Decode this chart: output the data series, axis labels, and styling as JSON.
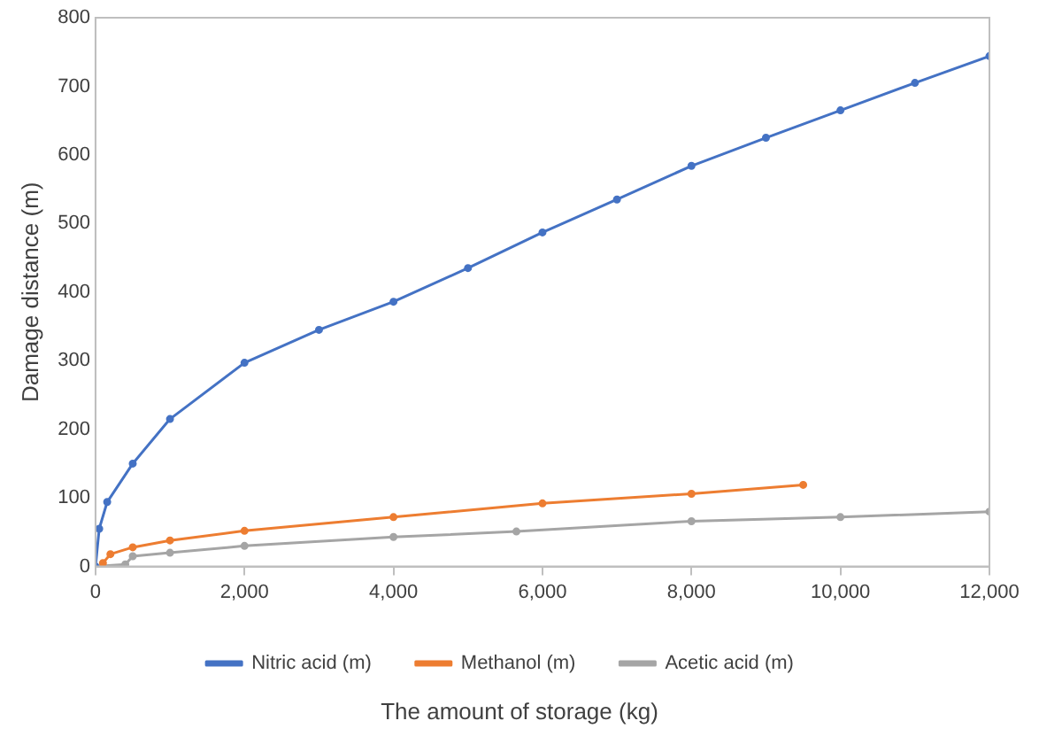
{
  "chart_data": {
    "type": "line",
    "xlabel": "The amount of storage (kg)",
    "ylabel": "Damage distance (m)",
    "xlim": [
      0,
      12000
    ],
    "xticks": [
      {
        "value": 0,
        "label": "0"
      },
      {
        "value": 2000,
        "label": "2,000"
      },
      {
        "value": 4000,
        "label": "4,000"
      },
      {
        "value": 6000,
        "label": "6,000"
      },
      {
        "value": 8000,
        "label": "8,000"
      },
      {
        "value": 10000,
        "label": "10,000"
      },
      {
        "value": 12000,
        "label": "12,000"
      }
    ],
    "ylim": [
      0,
      800
    ],
    "yticks": [
      0,
      100,
      200,
      300,
      400,
      500,
      600,
      700,
      800
    ],
    "grid": false,
    "legend": "bottom",
    "marker": "circle",
    "series": [
      {
        "name": "Nitric acid (m)",
        "color": "#4472c4",
        "x": [
          0,
          50,
          157,
          500,
          1000,
          2000,
          3000,
          4000,
          5000,
          6000,
          7000,
          8000,
          9000,
          10000,
          11000,
          12000
        ],
        "values": [
          0,
          55,
          94,
          150,
          215,
          297,
          345,
          386,
          435,
          487,
          535,
          584,
          625,
          665,
          705,
          744
        ]
      },
      {
        "name": "Methanol (m)",
        "color": "#ed7d31",
        "x": [
          100,
          200,
          500,
          1000,
          2000,
          4000,
          6000,
          8000,
          9500
        ],
        "values": [
          5,
          18,
          28,
          38,
          52,
          72,
          92,
          106,
          119
        ]
      },
      {
        "name": "Acetic acid (m)",
        "color": "#a5a5a5",
        "x": [
          0,
          400,
          500,
          1000,
          2000,
          4000,
          5650,
          8000,
          10000,
          12000
        ],
        "values": [
          0,
          3,
          15,
          20,
          30,
          43,
          51,
          66,
          72,
          80
        ]
      }
    ]
  }
}
